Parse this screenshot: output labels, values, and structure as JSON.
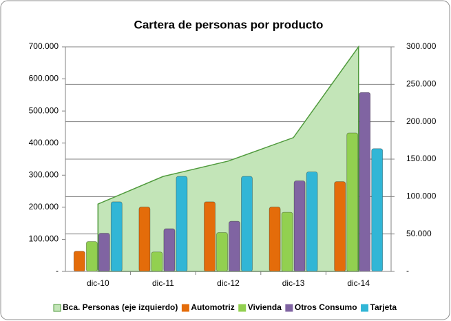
{
  "chart_data": {
    "type": "combo",
    "title": "Cartera de personas por producto",
    "categories": [
      "dic-10",
      "dic-11",
      "dic-12",
      "dic-13",
      "dic-14"
    ],
    "series": [
      {
        "name": "Bca. Personas (eje izquierdo)",
        "type": "area",
        "axis": "y",
        "color": "#4f9a3c",
        "fill": "#c3e5b8",
        "values": [
          210000,
          296000,
          344000,
          417000,
          700000
        ]
      },
      {
        "name": "Automotriz",
        "type": "bar",
        "axis": "y2",
        "color": "#e46c0a",
        "values": [
          27000,
          86000,
          93000,
          86000,
          120000
        ]
      },
      {
        "name": "Vivienda",
        "type": "bar",
        "axis": "y2",
        "color": "#92d050",
        "values": [
          40000,
          26000,
          52000,
          79000,
          185000
        ]
      },
      {
        "name": "Otros Consumo",
        "type": "bar",
        "axis": "y2",
        "color": "#8064a2",
        "values": [
          51000,
          57000,
          67000,
          121000,
          239000
        ]
      },
      {
        "name": "Tarjeta",
        "type": "bar",
        "axis": "y2",
        "color": "#31b6d6",
        "values": [
          93000,
          127000,
          127000,
          133000,
          164000
        ]
      }
    ],
    "ylim": [
      0,
      700000
    ],
    "yticks": [
      {
        "value": 0,
        "label": "-"
      },
      {
        "value": 100000,
        "label": "100.000"
      },
      {
        "value": 200000,
        "label": "200.000"
      },
      {
        "value": 300000,
        "label": "300.000"
      },
      {
        "value": 400000,
        "label": "400.000"
      },
      {
        "value": 500000,
        "label": "500.000"
      },
      {
        "value": 600000,
        "label": "600.000"
      },
      {
        "value": 700000,
        "label": "700.000"
      }
    ],
    "y2lim": [
      0,
      300000
    ],
    "y2ticks": [
      {
        "value": 0,
        "label": "-"
      },
      {
        "value": 50000,
        "label": "50.000"
      },
      {
        "value": 100000,
        "label": "100.000"
      },
      {
        "value": 150000,
        "label": "150.000"
      },
      {
        "value": 200000,
        "label": "200.000"
      },
      {
        "value": 250000,
        "label": "250.000"
      },
      {
        "value": 300000,
        "label": "300.000"
      }
    ],
    "grid": true,
    "legend": "bottom"
  }
}
